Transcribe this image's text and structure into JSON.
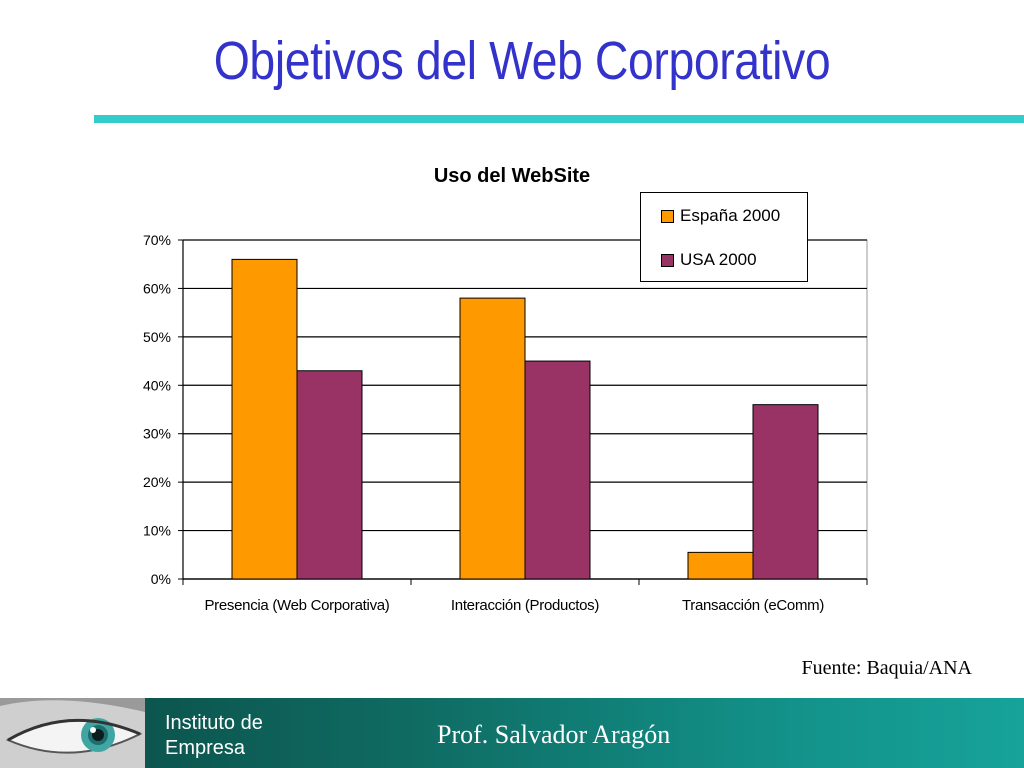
{
  "slide": {
    "title": "Objetivos del Web Corporativo",
    "source": "Fuente: Baquia/ANA"
  },
  "footer": {
    "institute_line1": "Instituto de",
    "institute_line2": "Empresa",
    "professor": "Prof.  Salvador Aragón"
  },
  "chart_data": {
    "type": "bar",
    "title": "Uso del WebSite",
    "xlabel": "",
    "ylabel": "",
    "categories": [
      "Presencia (Web Corporativa)",
      "Interacción (Productos)",
      "Transacción (eComm)"
    ],
    "series": [
      {
        "name": "España 2000",
        "values": [
          0.66,
          0.58,
          0.055
        ],
        "color": "#ff9900"
      },
      {
        "name": "USA 2000",
        "values": [
          0.43,
          0.45,
          0.36
        ],
        "color": "#993366"
      }
    ],
    "ylim": [
      0,
      0.7
    ],
    "yticks": [
      "0%",
      "10%",
      "20%",
      "30%",
      "40%",
      "50%",
      "60%",
      "70%"
    ],
    "grid": true,
    "legend_position": "top-right"
  }
}
